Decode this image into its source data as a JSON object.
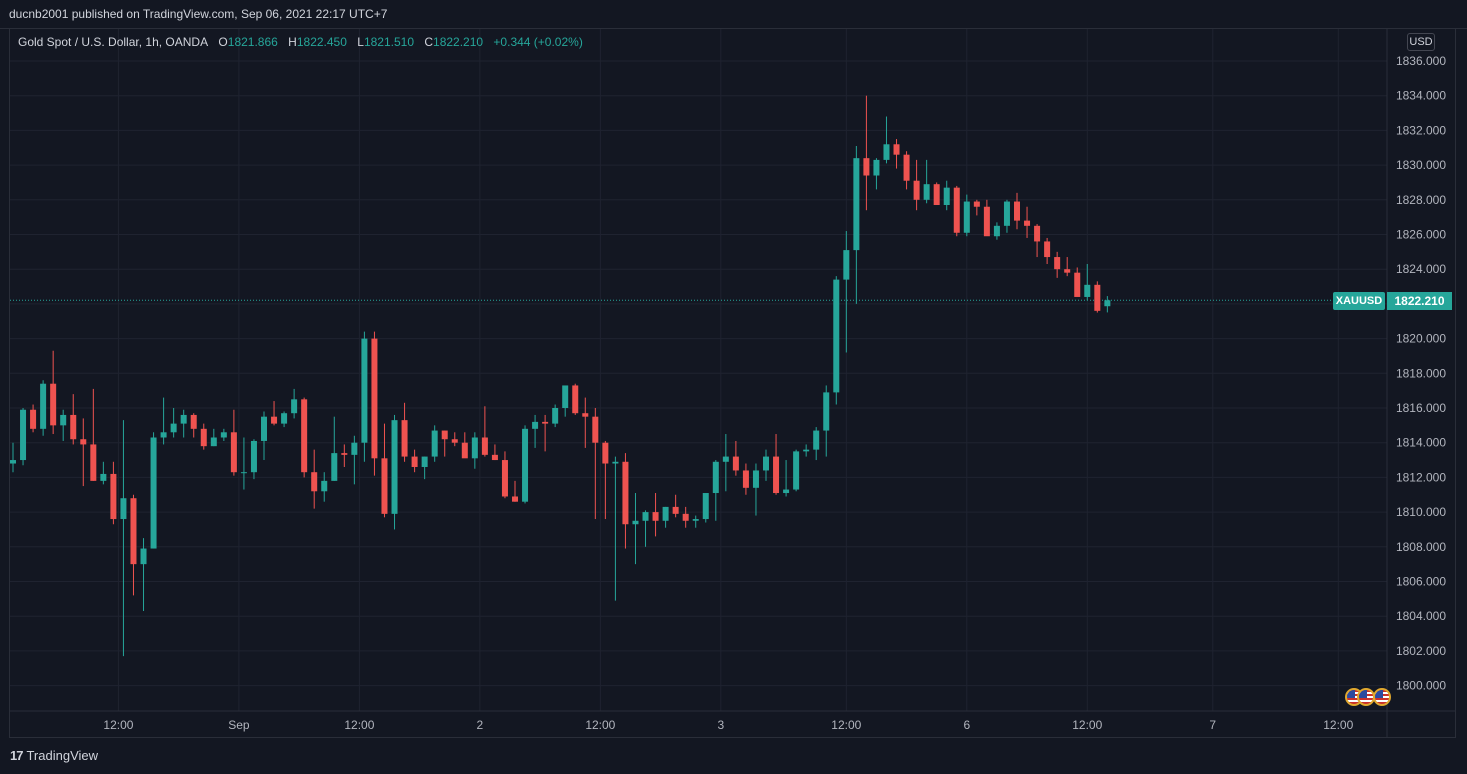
{
  "header": {
    "publisher": "ducnb2001 published on TradingView.com, Sep 06, 2021 22:17 UTC+7"
  },
  "legend": {
    "symbol_desc": "Gold Spot / U.S. Dollar, 1h, OANDA",
    "open_label": "O",
    "open": "1821.866",
    "high_label": "H",
    "high": "1822.450",
    "low_label": "L",
    "low": "1821.510",
    "close_label": "C",
    "close": "1822.210",
    "change": "+0.344 (+0.02%)"
  },
  "price_scale": {
    "currency": "USD",
    "symbol_tag": "XAUUSD",
    "last_price": "1822.210"
  },
  "footer": {
    "brand": "TradingView"
  },
  "colors": {
    "up": "#26a69a",
    "down": "#ef5350",
    "grid": "#1f2330",
    "background": "#131722",
    "text": "#b2b5be"
  },
  "icons": {
    "logo": "tradingview-logo-icon",
    "events": "us-flag-event-icon"
  },
  "chart_data": {
    "type": "candlestick",
    "symbol": "XAUUSD",
    "interval": "1h",
    "ylim": [
      1799,
      1837
    ],
    "y_ticks": [
      "1800.000",
      "1802.000",
      "1804.000",
      "1806.000",
      "1808.000",
      "1810.000",
      "1812.000",
      "1814.000",
      "1816.000",
      "1818.000",
      "1820.000",
      "1822.000",
      "1824.000",
      "1826.000",
      "1828.000",
      "1830.000",
      "1832.000",
      "1834.000",
      "1836.000"
    ],
    "x_ticks": [
      {
        "label": "12:00",
        "bar": 10.5
      },
      {
        "label": "Sep",
        "bar": 22.5
      },
      {
        "label": "12:00",
        "bar": 34.5
      },
      {
        "label": "2",
        "bar": 46.5
      },
      {
        "label": "12:00",
        "bar": 58.5
      },
      {
        "label": "3",
        "bar": 70.5
      },
      {
        "label": "12:00",
        "bar": 83
      },
      {
        "label": "6",
        "bar": 95
      },
      {
        "label": "12:00",
        "bar": 107
      },
      {
        "label": "7",
        "bar": 119.5
      },
      {
        "label": "12:00",
        "bar": 132
      }
    ],
    "last_price": 1822.21,
    "candles": [
      [
        1812.8,
        1814.0,
        1812.3,
        1813.0
      ],
      [
        1813.0,
        1816.0,
        1812.7,
        1815.9
      ],
      [
        1815.9,
        1816.2,
        1814.6,
        1814.8
      ],
      [
        1814.8,
        1817.6,
        1814.4,
        1817.4
      ],
      [
        1817.4,
        1819.3,
        1814.5,
        1815.0
      ],
      [
        1815.0,
        1815.9,
        1814.1,
        1815.6
      ],
      [
        1815.6,
        1816.8,
        1813.9,
        1814.2
      ],
      [
        1814.2,
        1815.4,
        1811.5,
        1813.9
      ],
      [
        1813.9,
        1817.1,
        1811.8,
        1811.8
      ],
      [
        1811.8,
        1812.9,
        1811.6,
        1812.2
      ],
      [
        1812.2,
        1812.9,
        1809.3,
        1809.6
      ],
      [
        1809.6,
        1815.3,
        1801.7,
        1810.8
      ],
      [
        1810.8,
        1811.0,
        1805.2,
        1807.0
      ],
      [
        1807.0,
        1808.5,
        1804.3,
        1807.9
      ],
      [
        1807.9,
        1814.6,
        1807.9,
        1814.3
      ],
      [
        1814.3,
        1816.6,
        1813.9,
        1814.6
      ],
      [
        1814.6,
        1816.0,
        1814.3,
        1815.1
      ],
      [
        1815.1,
        1815.9,
        1814.3,
        1815.6
      ],
      [
        1815.6,
        1815.7,
        1814.3,
        1814.8
      ],
      [
        1814.8,
        1815.1,
        1813.6,
        1813.8
      ],
      [
        1813.8,
        1814.8,
        1813.8,
        1814.3
      ],
      [
        1814.3,
        1814.8,
        1814.1,
        1814.6
      ],
      [
        1814.6,
        1815.9,
        1812.1,
        1812.3
      ],
      [
        1812.3,
        1814.3,
        1811.3,
        1812.3
      ],
      [
        1812.3,
        1814.2,
        1811.9,
        1814.1
      ],
      [
        1814.1,
        1815.8,
        1813.0,
        1815.5
      ],
      [
        1815.5,
        1816.4,
        1815.0,
        1815.1
      ],
      [
        1815.1,
        1815.8,
        1814.9,
        1815.7
      ],
      [
        1815.7,
        1817.1,
        1815.4,
        1816.5
      ],
      [
        1816.5,
        1816.6,
        1812.0,
        1812.3
      ],
      [
        1812.3,
        1813.6,
        1810.2,
        1811.2
      ],
      [
        1811.2,
        1812.3,
        1810.6,
        1811.8
      ],
      [
        1811.8,
        1815.5,
        1811.8,
        1813.4
      ],
      [
        1813.4,
        1813.9,
        1812.6,
        1813.3
      ],
      [
        1813.3,
        1814.4,
        1811.6,
        1814.0
      ],
      [
        1814.0,
        1820.4,
        1812.9,
        1820.0
      ],
      [
        1820.0,
        1820.4,
        1812.1,
        1813.1
      ],
      [
        1813.1,
        1815.1,
        1809.7,
        1809.9
      ],
      [
        1809.9,
        1815.6,
        1809.0,
        1815.3
      ],
      [
        1815.3,
        1816.3,
        1812.9,
        1813.2
      ],
      [
        1813.2,
        1813.6,
        1812.3,
        1812.6
      ],
      [
        1812.6,
        1813.2,
        1811.9,
        1813.2
      ],
      [
        1813.2,
        1815.0,
        1812.9,
        1814.7
      ],
      [
        1814.7,
        1814.7,
        1813.2,
        1814.2
      ],
      [
        1814.2,
        1814.6,
        1813.8,
        1814.0
      ],
      [
        1814.0,
        1814.6,
        1813.2,
        1813.1
      ],
      [
        1813.1,
        1814.6,
        1812.5,
        1814.3
      ],
      [
        1814.3,
        1816.1,
        1813.2,
        1813.3
      ],
      [
        1813.3,
        1813.9,
        1813.0,
        1813.0
      ],
      [
        1813.0,
        1813.5,
        1810.8,
        1810.9
      ],
      [
        1810.9,
        1811.8,
        1810.6,
        1810.6
      ],
      [
        1810.6,
        1815.0,
        1810.5,
        1814.8
      ],
      [
        1814.8,
        1815.6,
        1813.7,
        1815.2
      ],
      [
        1815.2,
        1815.6,
        1813.5,
        1815.1
      ],
      [
        1815.1,
        1816.2,
        1814.9,
        1816.0
      ],
      [
        1816.0,
        1817.2,
        1815.5,
        1817.3
      ],
      [
        1817.3,
        1817.4,
        1815.6,
        1815.7
      ],
      [
        1815.7,
        1816.6,
        1813.7,
        1815.5
      ],
      [
        1815.5,
        1816.0,
        1809.6,
        1814.0
      ],
      [
        1814.0,
        1814.1,
        1809.6,
        1812.8
      ],
      [
        1812.8,
        1813.2,
        1804.9,
        1812.9
      ],
      [
        1812.9,
        1813.4,
        1807.9,
        1809.3
      ],
      [
        1809.3,
        1811.1,
        1807.0,
        1809.5
      ],
      [
        1809.5,
        1810.1,
        1808.0,
        1810.0
      ],
      [
        1810.0,
        1811.1,
        1808.6,
        1809.5
      ],
      [
        1809.5,
        1810.3,
        1809.1,
        1810.3
      ],
      [
        1810.3,
        1811.0,
        1809.7,
        1809.9
      ],
      [
        1809.9,
        1810.3,
        1809.1,
        1809.5
      ],
      [
        1809.5,
        1809.8,
        1809.1,
        1809.6
      ],
      [
        1809.6,
        1810.9,
        1809.4,
        1811.1
      ],
      [
        1811.1,
        1813.0,
        1809.5,
        1812.9
      ],
      [
        1812.9,
        1814.5,
        1811.2,
        1813.2
      ],
      [
        1813.2,
        1814.1,
        1812.1,
        1812.4
      ],
      [
        1812.4,
        1812.8,
        1811.0,
        1811.4
      ],
      [
        1811.4,
        1812.8,
        1809.8,
        1812.4
      ],
      [
        1812.4,
        1813.6,
        1811.8,
        1813.2
      ],
      [
        1813.2,
        1814.5,
        1811.0,
        1811.1
      ],
      [
        1811.1,
        1813.0,
        1810.9,
        1811.3
      ],
      [
        1811.3,
        1813.6,
        1811.2,
        1813.5
      ],
      [
        1813.5,
        1813.9,
        1813.2,
        1813.6
      ],
      [
        1813.6,
        1814.9,
        1813.0,
        1814.7
      ],
      [
        1814.7,
        1817.3,
        1813.2,
        1816.9
      ],
      [
        1816.9,
        1823.6,
        1816.2,
        1823.4
      ],
      [
        1823.4,
        1826.2,
        1819.2,
        1825.1
      ],
      [
        1825.1,
        1831.1,
        1822.0,
        1830.4
      ],
      [
        1830.4,
        1834.0,
        1827.4,
        1829.4
      ],
      [
        1829.4,
        1830.4,
        1828.6,
        1830.3
      ],
      [
        1830.3,
        1832.8,
        1830.1,
        1831.2
      ],
      [
        1831.2,
        1831.5,
        1829.8,
        1830.6
      ],
      [
        1830.6,
        1830.8,
        1828.6,
        1829.1
      ],
      [
        1829.1,
        1830.3,
        1827.4,
        1828.0
      ],
      [
        1828.0,
        1830.3,
        1827.8,
        1828.9
      ],
      [
        1828.9,
        1829.0,
        1827.7,
        1827.7
      ],
      [
        1827.7,
        1829.1,
        1827.4,
        1828.7
      ],
      [
        1828.7,
        1828.8,
        1825.9,
        1826.1
      ],
      [
        1826.1,
        1828.3,
        1825.9,
        1827.9
      ],
      [
        1827.9,
        1828.0,
        1827.1,
        1827.6
      ],
      [
        1827.6,
        1828.0,
        1826.0,
        1825.9
      ],
      [
        1825.9,
        1826.7,
        1825.7,
        1826.5
      ],
      [
        1826.5,
        1828.0,
        1826.1,
        1827.9
      ],
      [
        1827.9,
        1828.4,
        1826.3,
        1826.8
      ],
      [
        1826.8,
        1827.6,
        1825.8,
        1826.5
      ],
      [
        1826.5,
        1826.6,
        1824.7,
        1825.6
      ],
      [
        1825.6,
        1825.8,
        1824.3,
        1824.7
      ],
      [
        1824.7,
        1825.0,
        1823.5,
        1824.0
      ],
      [
        1824.0,
        1824.7,
        1823.6,
        1823.8
      ],
      [
        1823.8,
        1824.1,
        1822.6,
        1822.4
      ],
      [
        1822.4,
        1824.3,
        1822.2,
        1823.1
      ],
      [
        1823.1,
        1823.3,
        1821.5,
        1821.6
      ],
      [
        1821.866,
        1822.45,
        1821.51,
        1822.21
      ]
    ]
  }
}
